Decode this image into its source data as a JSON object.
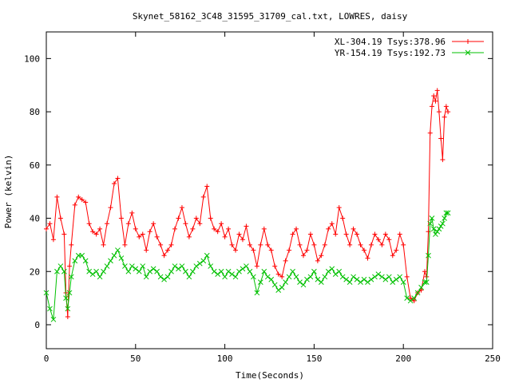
{
  "chart_data": {
    "type": "line",
    "title": "Skynet_58162_3C48_31595_31709_cal.txt, LOWRES, daisy",
    "xlabel": "Time(Seconds)",
    "ylabel": "Power (kelvin)",
    "xlim": [
      0,
      250
    ],
    "ylim": [
      -9,
      110
    ],
    "xticks": [
      0,
      50,
      100,
      150,
      200,
      250
    ],
    "yticks": [
      0,
      20,
      40,
      60,
      80,
      100
    ],
    "grid": false,
    "legend_position": "top-right",
    "series": [
      {
        "name": "XL-304.19 Tsys:378.96",
        "color": "#ff0000",
        "marker": "+",
        "x": [
          0,
          2,
          4,
          6,
          8,
          10,
          11,
          12,
          13,
          14,
          16,
          18,
          20,
          22,
          24,
          26,
          28,
          30,
          32,
          34,
          36,
          38,
          40,
          42,
          44,
          46,
          48,
          50,
          52,
          54,
          56,
          58,
          60,
          62,
          64,
          66,
          68,
          70,
          72,
          74,
          76,
          78,
          80,
          82,
          84,
          86,
          88,
          90,
          92,
          94,
          96,
          98,
          100,
          102,
          104,
          106,
          108,
          110,
          112,
          114,
          116,
          118,
          120,
          122,
          124,
          126,
          128,
          130,
          132,
          134,
          136,
          138,
          140,
          142,
          144,
          146,
          148,
          150,
          152,
          154,
          156,
          158,
          160,
          162,
          164,
          166,
          168,
          170,
          172,
          174,
          176,
          178,
          180,
          182,
          184,
          186,
          188,
          190,
          192,
          194,
          196,
          198,
          200,
          202,
          204,
          206,
          208,
          210,
          212,
          213,
          214,
          215,
          216,
          217,
          218,
          219,
          220,
          221,
          222,
          223,
          224,
          225
        ],
        "y": [
          36,
          38,
          32,
          48,
          40,
          34,
          12,
          3,
          22,
          30,
          45,
          48,
          47,
          46,
          38,
          35,
          34,
          36,
          30,
          38,
          44,
          53,
          55,
          40,
          30,
          38,
          42,
          36,
          33,
          34,
          28,
          35,
          38,
          33,
          30,
          26,
          28,
          30,
          36,
          40,
          44,
          38,
          33,
          36,
          40,
          38,
          48,
          52,
          40,
          36,
          35,
          38,
          33,
          36,
          30,
          28,
          34,
          32,
          37,
          30,
          28,
          22,
          30,
          36,
          30,
          28,
          22,
          19,
          18,
          24,
          28,
          34,
          36,
          30,
          26,
          28,
          34,
          30,
          24,
          26,
          30,
          36,
          38,
          34,
          44,
          40,
          34,
          30,
          36,
          34,
          30,
          28,
          25,
          30,
          34,
          32,
          30,
          34,
          32,
          26,
          28,
          34,
          30,
          18,
          10,
          9,
          12,
          13,
          20,
          18,
          35,
          72,
          82,
          86,
          84,
          88,
          80,
          70,
          62,
          78,
          82,
          80
        ]
      },
      {
        "name": "YR-154.19 Tsys:192.73",
        "color": "#00c000",
        "marker": "x",
        "x": [
          0,
          2,
          4,
          6,
          8,
          10,
          11,
          12,
          13,
          14,
          16,
          18,
          20,
          22,
          24,
          26,
          28,
          30,
          32,
          34,
          36,
          38,
          40,
          42,
          44,
          46,
          48,
          50,
          52,
          54,
          56,
          58,
          60,
          62,
          64,
          66,
          68,
          70,
          72,
          74,
          76,
          78,
          80,
          82,
          84,
          86,
          88,
          90,
          92,
          94,
          96,
          98,
          100,
          102,
          104,
          106,
          108,
          110,
          112,
          114,
          116,
          118,
          120,
          122,
          124,
          126,
          128,
          130,
          132,
          134,
          136,
          138,
          140,
          142,
          144,
          146,
          148,
          150,
          152,
          154,
          156,
          158,
          160,
          162,
          164,
          166,
          168,
          170,
          172,
          174,
          176,
          178,
          180,
          182,
          184,
          186,
          188,
          190,
          192,
          194,
          196,
          198,
          200,
          202,
          204,
          206,
          208,
          210,
          212,
          213,
          214,
          215,
          216,
          217,
          218,
          219,
          220,
          221,
          222,
          223,
          224,
          225
        ],
        "y": [
          12,
          6,
          2,
          20,
          22,
          20,
          10,
          6,
          12,
          18,
          24,
          26,
          26,
          24,
          20,
          19,
          20,
          18,
          20,
          22,
          24,
          26,
          28,
          25,
          22,
          20,
          22,
          21,
          20,
          22,
          18,
          20,
          21,
          20,
          18,
          17,
          18,
          20,
          22,
          21,
          22,
          20,
          18,
          20,
          22,
          23,
          24,
          26,
          22,
          20,
          19,
          20,
          18,
          20,
          19,
          18,
          20,
          21,
          22,
          20,
          18,
          12,
          16,
          20,
          18,
          17,
          15,
          13,
          14,
          16,
          18,
          20,
          18,
          16,
          15,
          17,
          18,
          20,
          17,
          16,
          18,
          20,
          21,
          19,
          20,
          18,
          17,
          16,
          18,
          17,
          16,
          17,
          16,
          17,
          18,
          19,
          18,
          17,
          18,
          16,
          17,
          18,
          16,
          10,
          9,
          10,
          12,
          14,
          16,
          16,
          26,
          38,
          40,
          36,
          34,
          35,
          36,
          37,
          38,
          40,
          42,
          42
        ]
      }
    ]
  }
}
